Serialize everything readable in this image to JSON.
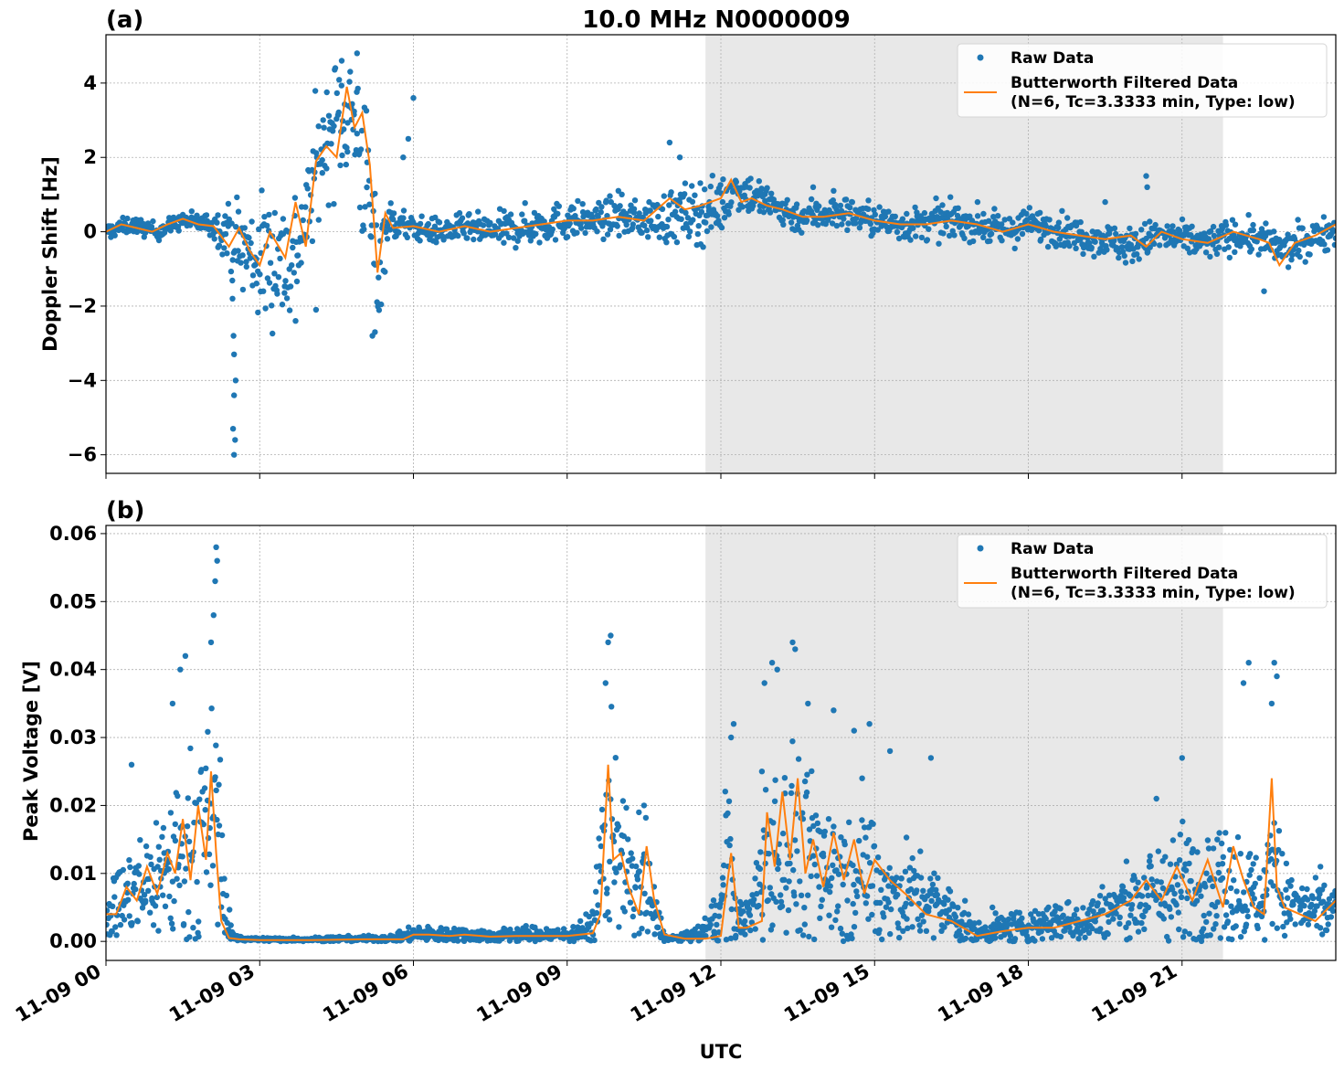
{
  "figure": {
    "title": "10.0 MHz N0000009",
    "xlabel": "UTC"
  },
  "legend": {
    "raw_label": "Raw Data",
    "filtered_label_line1": "Butterworth Filtered Data",
    "filtered_label_line2": "(N=6, Tc=3.3333 min, Type: low)"
  },
  "colors": {
    "raw": "#1f77b4",
    "filtered": "#ff7f0e",
    "shade": "#e8e8e8",
    "grid": "#b0b0b0"
  },
  "chart_data": [
    {
      "type": "scatter",
      "panel_label": "(a)",
      "ylabel": "Doppler Shift [Hz]",
      "xlim": [
        0,
        24
      ],
      "ylim": [
        -6.5,
        5.3
      ],
      "yticks": [
        4,
        2,
        0,
        -2,
        -4,
        -6
      ],
      "ytick_labels": [
        "4",
        "2",
        "0",
        "−2",
        "−4",
        "−6"
      ],
      "grid": true,
      "legend_position": "top-right",
      "shaded_interval_hours": [
        11.7,
        21.8
      ],
      "series": [
        {
          "name": "Raw Data",
          "kind": "points",
          "x_hours": [
            0,
            0.5,
            1.0,
            1.5,
            2.0,
            2.4,
            2.5,
            2.7,
            3.0,
            3.3,
            3.6,
            3.9,
            4.1,
            4.3,
            4.5,
            4.7,
            4.9,
            5.1,
            5.3,
            5.5,
            6.0,
            6.5,
            7.0,
            7.5,
            8.0,
            8.5,
            9.0,
            9.5,
            10.0,
            10.5,
            11.0,
            11.5,
            12.0,
            12.3,
            12.6,
            13.0,
            13.5,
            14.0,
            14.5,
            15.0,
            15.5,
            16.0,
            16.5,
            17.0,
            17.5,
            18.0,
            18.5,
            19.0,
            19.5,
            20.0,
            20.5,
            21.0,
            21.5,
            22.0,
            22.5,
            23.0,
            23.5,
            24.0
          ],
          "y_center": [
            0.0,
            0.2,
            0.0,
            0.3,
            0.2,
            0.0,
            -0.3,
            -0.5,
            -0.8,
            -0.6,
            -0.8,
            0.3,
            1.8,
            2.5,
            3.0,
            3.3,
            2.8,
            1.0,
            -1.0,
            0.3,
            0.1,
            0.0,
            0.1,
            0.0,
            0.1,
            0.2,
            0.3,
            0.3,
            0.4,
            0.3,
            0.4,
            0.5,
            0.7,
            1.2,
            1.0,
            0.7,
            0.4,
            0.5,
            0.5,
            0.3,
            0.2,
            0.2,
            0.3,
            0.2,
            0.0,
            0.2,
            0.1,
            -0.1,
            -0.2,
            -0.4,
            -0.1,
            -0.2,
            -0.3,
            -0.1,
            -0.2,
            -0.5,
            -0.2,
            0.1
          ],
          "y_spread": [
            0.15,
            0.15,
            0.15,
            0.15,
            0.2,
            0.5,
            0.8,
            1.0,
            1.2,
            1.3,
            1.2,
            1.0,
            1.1,
            1.0,
            1.2,
            1.3,
            1.4,
            1.6,
            1.3,
            0.4,
            0.2,
            0.25,
            0.25,
            0.3,
            0.35,
            0.35,
            0.35,
            0.3,
            0.35,
            0.3,
            0.5,
            0.6,
            0.5,
            0.4,
            0.4,
            0.35,
            0.3,
            0.3,
            0.3,
            0.3,
            0.3,
            0.3,
            0.3,
            0.3,
            0.3,
            0.3,
            0.3,
            0.3,
            0.3,
            0.35,
            0.3,
            0.3,
            0.3,
            0.3,
            0.3,
            0.35,
            0.3,
            0.3
          ],
          "outliers": [
            [
              2.5,
              -6.0
            ],
            [
              2.52,
              -5.6
            ],
            [
              2.48,
              -5.3
            ],
            [
              2.5,
              -4.4
            ],
            [
              2.53,
              -4.0
            ],
            [
              2.5,
              -3.3
            ],
            [
              2.49,
              -2.8
            ],
            [
              2.47,
              -1.8
            ],
            [
              3.7,
              -2.4
            ],
            [
              4.1,
              -2.1
            ],
            [
              5.2,
              -2.8
            ],
            [
              5.25,
              -2.7
            ],
            [
              6.0,
              3.6
            ],
            [
              5.9,
              2.5
            ],
            [
              5.8,
              2.0
            ],
            [
              11.0,
              2.4
            ],
            [
              11.2,
              2.0
            ],
            [
              10.0,
              1.1
            ],
            [
              10.6,
              0.8
            ],
            [
              20.3,
              1.5
            ],
            [
              20.32,
              1.2
            ],
            [
              22.6,
              -1.6
            ],
            [
              16.2,
              0.9
            ],
            [
              19.5,
              0.8
            ],
            [
              13.8,
              1.2
            ],
            [
              14.2,
              1.1
            ],
            [
              4.9,
              4.8
            ],
            [
              4.6,
              4.6
            ]
          ]
        },
        {
          "name": "Butterworth Filtered Data",
          "kind": "line",
          "x_hours": [
            0,
            0.3,
            0.6,
            0.9,
            1.2,
            1.5,
            1.8,
            2.1,
            2.4,
            2.6,
            2.8,
            3.0,
            3.2,
            3.5,
            3.7,
            3.9,
            4.1,
            4.3,
            4.5,
            4.7,
            4.85,
            5.0,
            5.15,
            5.3,
            5.45,
            5.6,
            6.0,
            6.5,
            7.0,
            7.5,
            8.0,
            8.5,
            9.0,
            9.5,
            10.0,
            10.5,
            11.0,
            11.3,
            11.6,
            12.0,
            12.2,
            12.4,
            12.6,
            12.9,
            13.2,
            13.6,
            14.0,
            14.5,
            15.0,
            15.5,
            16.0,
            16.5,
            17.0,
            17.5,
            18.0,
            18.5,
            19.0,
            19.5,
            20.0,
            20.3,
            20.6,
            21.0,
            21.5,
            22.0,
            22.5,
            22.7,
            22.9,
            23.2,
            23.6,
            24.0
          ],
          "y": [
            0.0,
            0.2,
            0.1,
            0.0,
            0.2,
            0.35,
            0.2,
            0.15,
            -0.4,
            0.1,
            -0.5,
            -0.9,
            0.0,
            -0.7,
            0.8,
            -0.4,
            1.9,
            2.3,
            2.0,
            3.9,
            2.8,
            3.2,
            1.8,
            -1.1,
            0.5,
            0.1,
            0.15,
            0.0,
            0.15,
            0.0,
            0.1,
            0.2,
            0.3,
            0.3,
            0.4,
            0.3,
            0.9,
            0.6,
            0.7,
            0.9,
            1.4,
            0.8,
            0.9,
            0.7,
            0.6,
            0.4,
            0.4,
            0.5,
            0.3,
            0.2,
            0.2,
            0.3,
            0.2,
            0.0,
            0.2,
            0.0,
            -0.1,
            -0.2,
            -0.1,
            -0.4,
            0.0,
            -0.2,
            -0.3,
            0.0,
            -0.2,
            -0.3,
            -0.9,
            -0.3,
            -0.1,
            0.2
          ]
        }
      ]
    },
    {
      "type": "scatter",
      "panel_label": "(b)",
      "ylabel": "Peak Voltage [V]",
      "xlabel": "UTC",
      "xlim": [
        0,
        24
      ],
      "ylim": [
        -0.0028,
        0.0612
      ],
      "yticks": [
        0.06,
        0.05,
        0.04,
        0.03,
        0.02,
        0.01,
        0.0
      ],
      "ytick_labels": [
        "0.06",
        "0.05",
        "0.04",
        "0.03",
        "0.02",
        "0.01",
        "0.00"
      ],
      "xticks_hours": [
        0,
        3,
        6,
        9,
        12,
        15,
        18,
        21
      ],
      "xtick_labels": [
        "11-09 00",
        "11-09 03",
        "11-09 06",
        "11-09 09",
        "11-09 12",
        "11-09 15",
        "11-09 18",
        "11-09 21"
      ],
      "grid": true,
      "legend_position": "top-right",
      "shaded_interval_hours": [
        11.7,
        21.8
      ],
      "series": [
        {
          "name": "Raw Data",
          "kind": "points",
          "x_hours": [
            0,
            0.3,
            0.6,
            0.9,
            1.2,
            1.5,
            1.8,
            2.0,
            2.2,
            2.3,
            2.5,
            3.0,
            4.0,
            5.0,
            5.5,
            6.0,
            6.5,
            7.0,
            7.5,
            8.0,
            8.5,
            9.0,
            9.5,
            9.7,
            9.9,
            10.1,
            10.3,
            10.5,
            10.7,
            10.9,
            11.2,
            11.6,
            12.0,
            12.1,
            12.3,
            12.6,
            12.9,
            13.1,
            13.4,
            13.7,
            14.0,
            14.3,
            14.6,
            14.9,
            15.2,
            15.6,
            16.0,
            16.5,
            17.0,
            17.5,
            18.0,
            18.5,
            19.0,
            19.5,
            20.0,
            20.5,
            21.0,
            21.5,
            22.0,
            22.3,
            22.6,
            22.8,
            23.0,
            23.3,
            23.6,
            24.0
          ],
          "y_center": [
            0.004,
            0.006,
            0.007,
            0.009,
            0.011,
            0.012,
            0.014,
            0.016,
            0.018,
            0.005,
            0.0005,
            0.0003,
            0.0003,
            0.0004,
            0.0004,
            0.001,
            0.001,
            0.001,
            0.0008,
            0.001,
            0.001,
            0.001,
            0.002,
            0.012,
            0.02,
            0.01,
            0.006,
            0.009,
            0.004,
            0.0005,
            0.0005,
            0.001,
            0.004,
            0.015,
            0.003,
            0.004,
            0.012,
            0.011,
            0.015,
            0.009,
            0.012,
            0.009,
            0.011,
            0.01,
            0.008,
            0.007,
            0.006,
            0.004,
            0.001,
            0.002,
            0.002,
            0.003,
            0.003,
            0.004,
            0.006,
            0.007,
            0.008,
            0.009,
            0.008,
            0.007,
            0.006,
            0.015,
            0.006,
            0.005,
            0.004,
            0.005
          ],
          "y_spread": [
            0.003,
            0.004,
            0.005,
            0.006,
            0.008,
            0.009,
            0.01,
            0.011,
            0.013,
            0.004,
            0.0003,
            0.0002,
            0.0002,
            0.0003,
            0.0003,
            0.0008,
            0.0008,
            0.0008,
            0.0006,
            0.0008,
            0.0008,
            0.0008,
            0.0015,
            0.01,
            0.013,
            0.008,
            0.005,
            0.007,
            0.003,
            0.0003,
            0.0003,
            0.001,
            0.003,
            0.009,
            0.002,
            0.003,
            0.009,
            0.01,
            0.011,
            0.008,
            0.008,
            0.007,
            0.007,
            0.007,
            0.006,
            0.005,
            0.004,
            0.003,
            0.001,
            0.0015,
            0.0015,
            0.002,
            0.002,
            0.003,
            0.004,
            0.005,
            0.006,
            0.007,
            0.006,
            0.005,
            0.004,
            0.011,
            0.004,
            0.003,
            0.003,
            0.003
          ],
          "outliers": [
            [
              2.15,
              0.058
            ],
            [
              2.17,
              0.056
            ],
            [
              2.13,
              0.053
            ],
            [
              2.1,
              0.048
            ],
            [
              2.05,
              0.044
            ],
            [
              1.55,
              0.042
            ],
            [
              1.45,
              0.04
            ],
            [
              1.3,
              0.035
            ],
            [
              0.5,
              0.026
            ],
            [
              9.8,
              0.044
            ],
            [
              9.85,
              0.045
            ],
            [
              9.75,
              0.038
            ],
            [
              10.5,
              0.02
            ],
            [
              10.4,
              0.019
            ],
            [
              12.25,
              0.032
            ],
            [
              12.2,
              0.03
            ],
            [
              13.4,
              0.044
            ],
            [
              13.45,
              0.043
            ],
            [
              13.0,
              0.041
            ],
            [
              13.1,
              0.04
            ],
            [
              12.85,
              0.038
            ],
            [
              13.7,
              0.035
            ],
            [
              14.2,
              0.034
            ],
            [
              14.9,
              0.032
            ],
            [
              14.6,
              0.031
            ],
            [
              15.3,
              0.028
            ],
            [
              16.1,
              0.027
            ],
            [
              21.0,
              0.027
            ],
            [
              20.5,
              0.021
            ],
            [
              22.3,
              0.041
            ],
            [
              22.2,
              0.038
            ],
            [
              22.8,
              0.041
            ],
            [
              22.85,
              0.039
            ],
            [
              22.75,
              0.035
            ],
            [
              23.7,
              0.011
            ],
            [
              17.3,
              0.005
            ],
            [
              12.8,
              0.025
            ]
          ]
        },
        {
          "name": "Butterworth Filtered Data",
          "kind": "line",
          "x_hours": [
            0,
            0.2,
            0.4,
            0.6,
            0.8,
            1.0,
            1.2,
            1.35,
            1.5,
            1.65,
            1.8,
            1.95,
            2.05,
            2.15,
            2.25,
            2.4,
            2.6,
            3.0,
            4.0,
            5.0,
            5.8,
            6.0,
            6.3,
            6.7,
            7.0,
            7.5,
            8.0,
            8.5,
            9.0,
            9.5,
            9.65,
            9.8,
            9.9,
            10.05,
            10.2,
            10.4,
            10.55,
            10.7,
            10.9,
            11.3,
            11.7,
            12.0,
            12.1,
            12.2,
            12.35,
            12.5,
            12.8,
            12.9,
            13.05,
            13.2,
            13.35,
            13.5,
            13.65,
            13.8,
            14.0,
            14.2,
            14.4,
            14.6,
            14.8,
            15.0,
            15.3,
            15.6,
            16.0,
            16.5,
            17.0,
            17.5,
            18.0,
            18.5,
            19.0,
            19.5,
            20.0,
            20.3,
            20.6,
            20.9,
            21.2,
            21.5,
            21.8,
            22.0,
            22.2,
            22.4,
            22.6,
            22.75,
            22.85,
            23.0,
            23.3,
            23.6,
            24.0
          ],
          "y": [
            0.004,
            0.004,
            0.008,
            0.006,
            0.011,
            0.007,
            0.013,
            0.01,
            0.018,
            0.009,
            0.02,
            0.012,
            0.025,
            0.013,
            0.003,
            0.0005,
            0.0003,
            0.0002,
            0.0002,
            0.0003,
            0.0003,
            0.001,
            0.001,
            0.0008,
            0.001,
            0.0007,
            0.0008,
            0.0008,
            0.0008,
            0.0012,
            0.004,
            0.026,
            0.012,
            0.013,
            0.008,
            0.004,
            0.014,
            0.006,
            0.001,
            0.0004,
            0.0004,
            0.0008,
            0.007,
            0.013,
            0.002,
            0.002,
            0.003,
            0.019,
            0.011,
            0.022,
            0.012,
            0.024,
            0.01,
            0.015,
            0.008,
            0.016,
            0.009,
            0.015,
            0.007,
            0.012,
            0.009,
            0.007,
            0.004,
            0.003,
            0.0008,
            0.0015,
            0.002,
            0.002,
            0.003,
            0.004,
            0.006,
            0.009,
            0.006,
            0.011,
            0.006,
            0.012,
            0.005,
            0.014,
            0.009,
            0.005,
            0.004,
            0.024,
            0.008,
            0.005,
            0.004,
            0.003,
            0.006
          ]
        }
      ]
    }
  ]
}
